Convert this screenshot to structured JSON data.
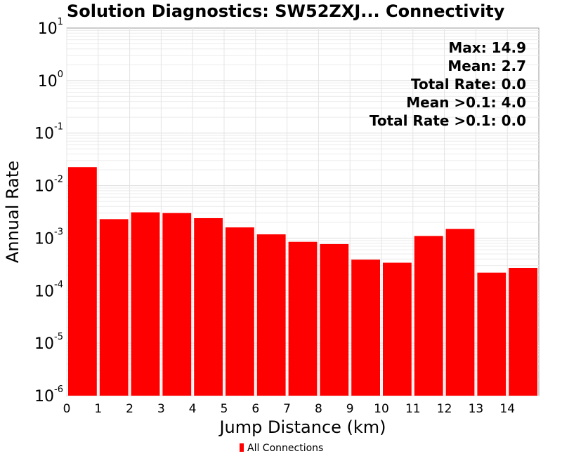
{
  "chart_data": {
    "type": "bar",
    "title": "Solution Diagnostics: SW52ZXJ... Connectivity",
    "xlabel": "Jump Distance (km)",
    "ylabel": "Annual Rate",
    "x_start": [
      0,
      1,
      2,
      3,
      4,
      5,
      6,
      7,
      8,
      9,
      10,
      11,
      12,
      13,
      14
    ],
    "bin_width": 1,
    "values": [
      0.0225,
      0.0023,
      0.0031,
      0.003,
      0.0024,
      0.0016,
      0.00118,
      0.00085,
      0.00077,
      0.00039,
      0.00034,
      0.0011,
      0.0015,
      0.00022,
      0.00027
    ],
    "xlim": [
      0,
      15
    ],
    "ylim": [
      1e-06,
      10
    ],
    "y_scale": "log",
    "x_ticks": [
      "0",
      "1",
      "2",
      "3",
      "4",
      "5",
      "6",
      "7",
      "8",
      "9",
      "10",
      "11",
      "12",
      "13",
      "14"
    ],
    "y_ticks": [
      {
        "base": "10",
        "exp": "1",
        "value": 10
      },
      {
        "base": "10",
        "exp": "0",
        "value": 1
      },
      {
        "base": "10",
        "exp": "-1",
        "value": 0.1
      },
      {
        "base": "10",
        "exp": "-2",
        "value": 0.01
      },
      {
        "base": "10",
        "exp": "-3",
        "value": 0.001
      },
      {
        "base": "10",
        "exp": "-4",
        "value": 0.0001
      },
      {
        "base": "10",
        "exp": "-5",
        "value": 1e-05
      },
      {
        "base": "10",
        "exp": "-6",
        "value": 1e-06
      }
    ],
    "grid": true,
    "bar_color": "#ff0000",
    "legend": {
      "placement": "bottom-center",
      "entries": [
        {
          "name": "All Connections",
          "color": "#ff0000"
        }
      ]
    },
    "annotations": [
      "Max: 14.9",
      "Mean: 2.7",
      "Total Rate: 0.0",
      "Mean >0.1: 4.0",
      "Total Rate >0.1: 0.0"
    ]
  }
}
